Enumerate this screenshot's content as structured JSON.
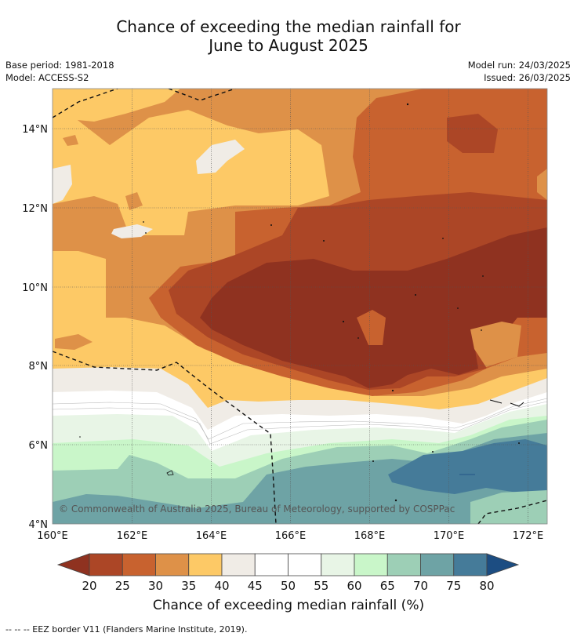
{
  "title_line1": "Chance of exceeding the median rainfall for",
  "title_line2": "June to August 2025",
  "base_period": "Base period: 1981-2018",
  "model": "Model: ACCESS-S2",
  "model_run": "Model run: 24/03/2025",
  "issued": "Issued: 26/03/2025",
  "copyright": "© Commonwealth of Australia 2025, Bureau of Meteorology, supported by COSPPac",
  "lon_ticks": [
    "160°E",
    "162°E",
    "164°E",
    "166°E",
    "168°E",
    "170°E",
    "172°E"
  ],
  "lat_ticks": [
    "4°N",
    "6°N",
    "8°N",
    "10°N",
    "12°N",
    "14°N"
  ],
  "colorbar": {
    "title": "Chance of exceeding median rainfall (%)",
    "labels": [
      "20",
      "25",
      "30",
      "35",
      "40",
      "45",
      "50",
      "55",
      "60",
      "65",
      "70",
      "75",
      "80"
    ],
    "colors": [
      "#8f3220",
      "#ac4626",
      "#c8622f",
      "#de9148",
      "#fdc966",
      "#f0ece6",
      "#ffffff",
      "#ffffff",
      "#e8f5e6",
      "#c9f6c9",
      "#9dcfb6",
      "#6ea3a5",
      "#457b99",
      "#1c4d82"
    ]
  },
  "footnote": "--  --  -- EEZ border V11 (Flanders Marine Institute, 2019)."
}
